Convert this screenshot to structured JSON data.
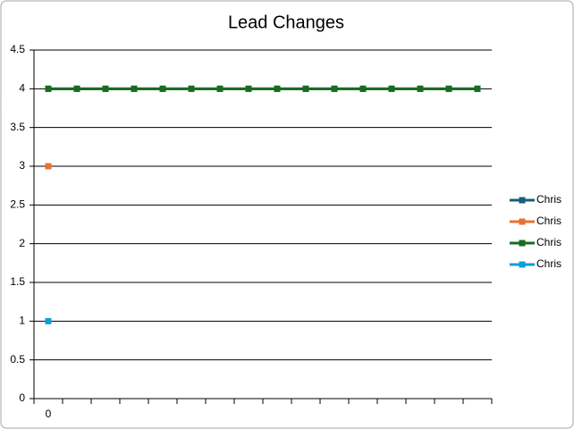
{
  "chart_data": {
    "type": "line",
    "title": "Lead Changes",
    "categories": [
      "0",
      null,
      null,
      null,
      null,
      null,
      null,
      null,
      null,
      null,
      null,
      null,
      null,
      null,
      null,
      null
    ],
    "series": [
      {
        "name": "Chris",
        "color": "#1e5c7c",
        "values": [
          4,
          4,
          4,
          4,
          4,
          4,
          4,
          4,
          4,
          4,
          4,
          4,
          4,
          4,
          4,
          4
        ]
      },
      {
        "name": "Chris",
        "color": "#e97132",
        "values": [
          3,
          null,
          null,
          null,
          null,
          null,
          null,
          null,
          null,
          null,
          null,
          null,
          null,
          null,
          null,
          null
        ]
      },
      {
        "name": "Chris",
        "color": "#196b24",
        "values": [
          4,
          4,
          4,
          4,
          4,
          4,
          4,
          4,
          4,
          4,
          4,
          4,
          4,
          4,
          4,
          4
        ]
      },
      {
        "name": "Chris",
        "color": "#0f9ed5",
        "values": [
          1,
          null,
          null,
          null,
          null,
          null,
          null,
          null,
          null,
          null,
          null,
          null,
          null,
          null,
          null,
          null
        ]
      }
    ],
    "ylim": [
      0,
      4.5
    ],
    "yticks": [
      0,
      0.5,
      1,
      1.5,
      2,
      2.5,
      3,
      3.5,
      4,
      4.5
    ],
    "grid": true,
    "legend": "right"
  }
}
